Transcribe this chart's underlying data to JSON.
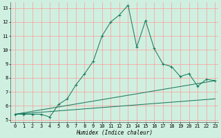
{
  "xlabel": "Humidex (Indice chaleur)",
  "bg_color": "#cff0e0",
  "grid_color": "#ff9999",
  "line_color": "#1a7a60",
  "xlim": [
    -0.5,
    23.4
  ],
  "ylim": [
    4.85,
    13.4
  ],
  "yticks": [
    5,
    6,
    7,
    8,
    9,
    10,
    11,
    12,
    13
  ],
  "xticks": [
    0,
    1,
    2,
    3,
    4,
    5,
    6,
    7,
    8,
    9,
    10,
    11,
    12,
    13,
    14,
    15,
    16,
    17,
    18,
    19,
    20,
    21,
    22,
    23
  ],
  "line1_x": [
    0,
    1,
    2,
    3,
    4,
    5,
    6,
    7,
    8,
    9,
    10,
    11,
    12,
    13,
    14,
    15,
    16,
    17,
    18,
    19,
    20,
    21,
    22,
    23
  ],
  "line1_y": [
    5.4,
    5.4,
    5.4,
    5.4,
    5.2,
    6.1,
    6.5,
    7.5,
    8.3,
    9.2,
    11.0,
    12.0,
    12.5,
    13.2,
    10.2,
    12.1,
    10.1,
    9.0,
    8.8,
    8.1,
    8.3,
    7.4,
    7.9,
    7.8
  ],
  "line2_x": [
    0,
    23
  ],
  "line2_y": [
    5.4,
    7.8
  ],
  "line3_x": [
    0,
    23
  ],
  "line3_y": [
    5.4,
    6.5
  ],
  "tick_fontsize": 5.0,
  "xlabel_fontsize": 5.5,
  "linewidth": 0.75,
  "marker_size": 2.5
}
